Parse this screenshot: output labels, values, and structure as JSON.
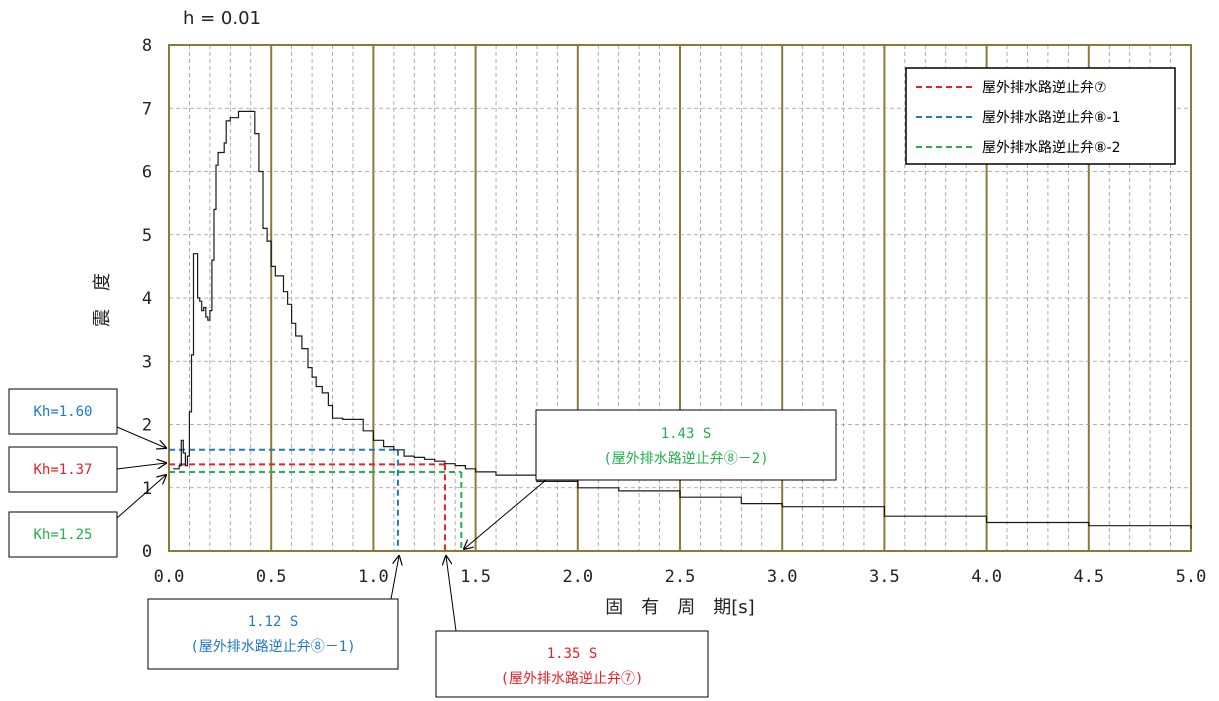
{
  "chart_data": {
    "type": "line",
    "title": "h = 0.01",
    "xlabel": "固　有　周　期[s]",
    "ylabel": "震　度",
    "xlim": [
      0,
      5
    ],
    "ylim": [
      0,
      8
    ],
    "x_ticks": [
      "0.0",
      "0.5",
      "1.0",
      "1.5",
      "2.0",
      "2.5",
      "3.0",
      "3.5",
      "4.0",
      "4.5",
      "5.0"
    ],
    "y_ticks": [
      "0",
      "1",
      "2",
      "3",
      "4",
      "5",
      "6",
      "7",
      "8"
    ],
    "grid": true,
    "legend_position": "top-right",
    "spectrum": {
      "x": [
        0.02,
        0.05,
        0.06,
        0.07,
        0.08,
        0.09,
        0.1,
        0.11,
        0.12,
        0.13,
        0.14,
        0.15,
        0.16,
        0.17,
        0.18,
        0.19,
        0.2,
        0.21,
        0.22,
        0.23,
        0.24,
        0.25,
        0.26,
        0.27,
        0.28,
        0.3,
        0.32,
        0.34,
        0.36,
        0.38,
        0.4,
        0.42,
        0.44,
        0.46,
        0.48,
        0.5,
        0.52,
        0.54,
        0.56,
        0.58,
        0.6,
        0.62,
        0.65,
        0.68,
        0.7,
        0.72,
        0.75,
        0.78,
        0.8,
        0.85,
        0.9,
        0.95,
        1.0,
        1.05,
        1.1,
        1.15,
        1.2,
        1.25,
        1.3,
        1.35,
        1.4,
        1.45,
        1.5,
        1.6,
        1.8,
        2.0,
        2.2,
        2.5,
        2.8,
        3.0,
        3.5,
        4.0,
        4.5,
        5.0
      ],
      "y": [
        1.3,
        1.35,
        1.75,
        1.55,
        1.35,
        1.5,
        2.2,
        3.1,
        4.7,
        4.7,
        4.0,
        3.95,
        3.8,
        3.85,
        3.7,
        3.65,
        3.8,
        4.6,
        5.4,
        6.1,
        6.3,
        6.3,
        6.3,
        6.45,
        6.8,
        6.85,
        6.85,
        6.95,
        6.95,
        6.95,
        6.95,
        6.6,
        6.0,
        5.1,
        4.9,
        4.5,
        4.35,
        4.35,
        4.1,
        3.9,
        3.6,
        3.4,
        3.2,
        2.9,
        2.75,
        2.6,
        2.5,
        2.3,
        2.1,
        2.08,
        2.08,
        1.9,
        1.75,
        1.65,
        1.6,
        1.5,
        1.48,
        1.45,
        1.42,
        1.38,
        1.35,
        1.3,
        1.25,
        1.2,
        1.1,
        1.0,
        0.95,
        0.85,
        0.75,
        0.7,
        0.55,
        0.45,
        0.4,
        0.35
      ]
    },
    "series": [
      {
        "name": "屋外排水路逆止弁⑦",
        "color": "#e8202a",
        "period": 1.35,
        "kh": 1.37
      },
      {
        "name": "屋外排水路逆止弁⑧-1",
        "color": "#1f78c8",
        "period": 1.12,
        "kh": 1.6
      },
      {
        "name": "屋外排水路逆止弁⑧-2",
        "color": "#22b24c",
        "period": 1.43,
        "kh": 1.25
      }
    ],
    "callouts": {
      "kh_160": "Kh=1.60",
      "kh_137": "Kh=1.37",
      "kh_125": "Kh=1.25",
      "p_143": "1.43 S",
      "p_143_sub": "(屋外排水路逆止弁⑧－2)",
      "p_112": "1.12 S",
      "p_112_sub": "(屋外排水路逆止弁⑧－1)",
      "p_135": "1.35 S",
      "p_135_sub": "(屋外排水路逆止弁⑦)"
    }
  }
}
